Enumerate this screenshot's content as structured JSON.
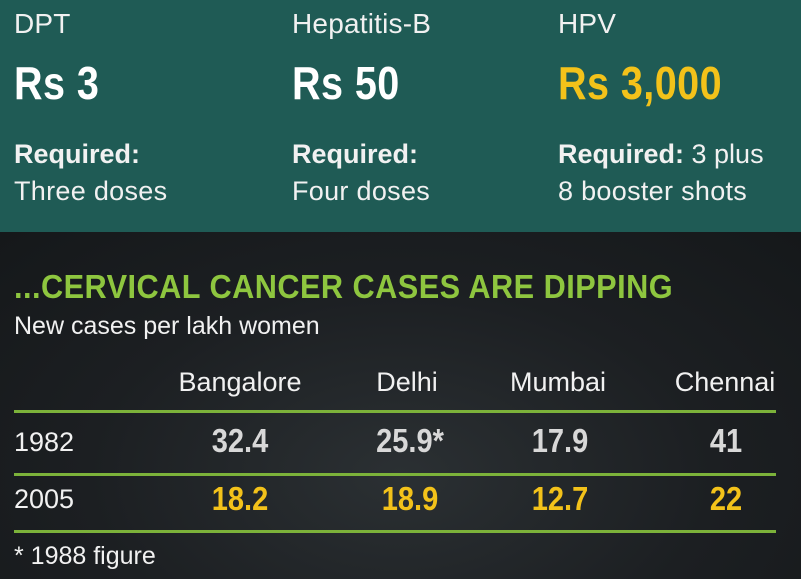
{
  "vaccines": [
    {
      "name": "DPT",
      "price": "Rs 3",
      "required_label": "Required:",
      "required_extra": "",
      "detail": "Three doses",
      "highlight": false
    },
    {
      "name": "Hepatitis-B",
      "price": "Rs 50",
      "required_label": "Required:",
      "required_extra": "",
      "detail": "Four doses",
      "highlight": false
    },
    {
      "name": "HPV",
      "price": "Rs 3,000",
      "required_label": "Required:",
      "required_extra": " 3 plus",
      "detail": "8 booster shots",
      "highlight": true
    }
  ],
  "cases": {
    "title": "...CERVICAL CANCER CASES ARE DIPPING",
    "subtitle": "New cases per lakh women",
    "columns": [
      "Bangalore",
      "Delhi",
      "Mumbai",
      "Chennai"
    ],
    "rows": [
      {
        "year": "1982",
        "values": [
          "32.4",
          "25.9*",
          "17.9",
          "41"
        ]
      },
      {
        "year": "2005",
        "values": [
          "18.2",
          "18.9",
          "12.7",
          "22"
        ]
      }
    ],
    "footnote": "* 1988 figure"
  },
  "colors": {
    "panel_teal": "#1f5b55",
    "background_dark": "#1a1d20",
    "accent_green": "#8ec63f",
    "rule_green": "#7cb23a",
    "highlight_yellow": "#f3c21a"
  }
}
